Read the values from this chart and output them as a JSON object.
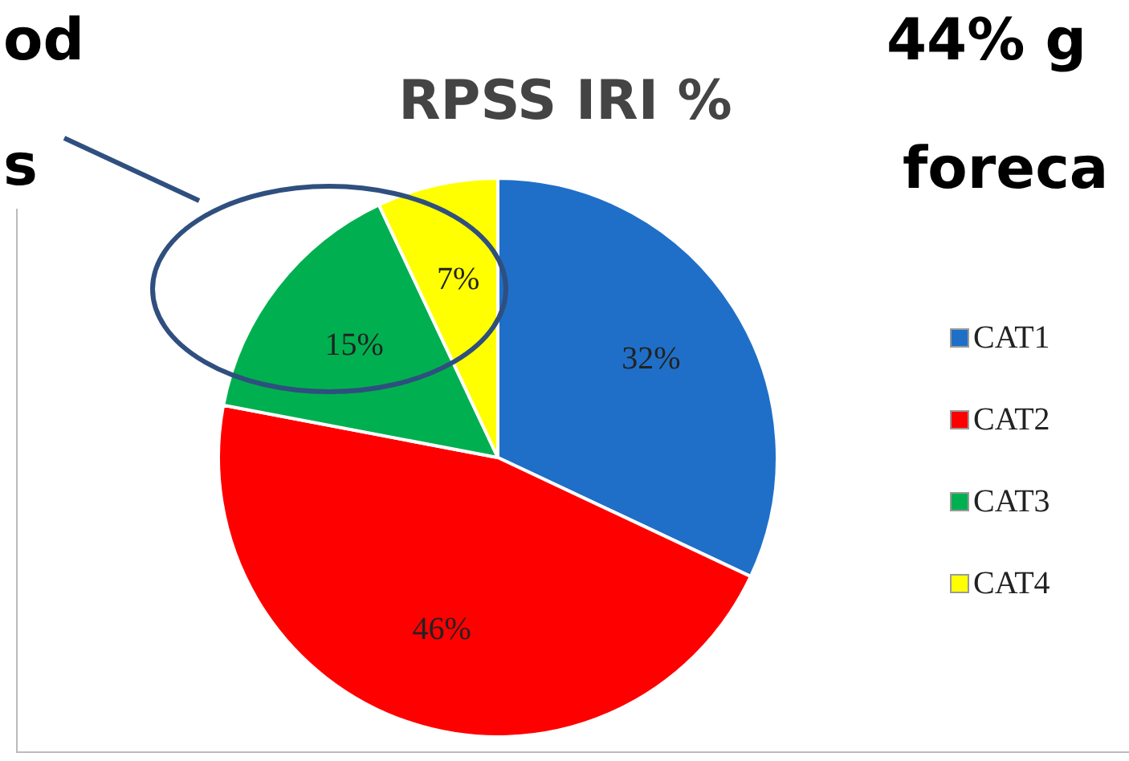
{
  "chart_data": {
    "type": "pie",
    "title": "RPSS IRI %",
    "categories": [
      "CAT1",
      "CAT2",
      "CAT3",
      "CAT4"
    ],
    "values": [
      32,
      46,
      15,
      7
    ],
    "colors": [
      "#1f6fc8",
      "#ff0000",
      "#00b050",
      "#ffff00"
    ],
    "value_labels": [
      "32%",
      "46%",
      "15%",
      "7%"
    ],
    "legend": "right",
    "annotations": [
      "od",
      "s",
      "44% g",
      "foreca"
    ]
  }
}
